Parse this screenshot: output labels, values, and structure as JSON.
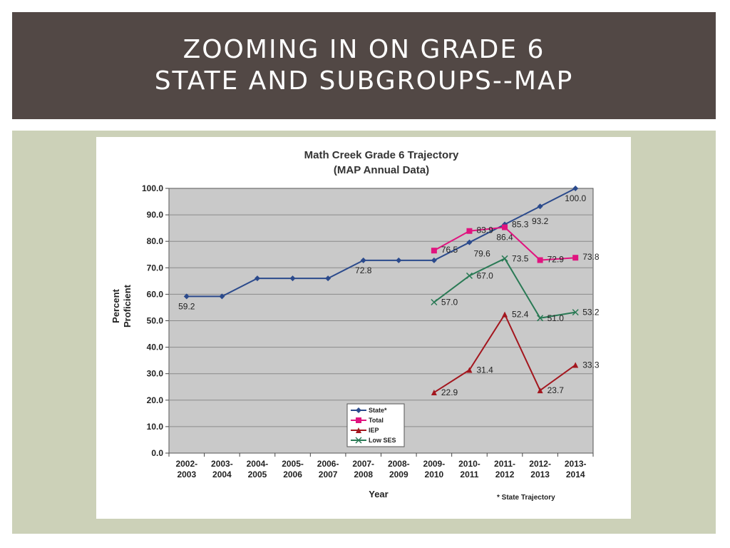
{
  "slide": {
    "title_line1": "ZOOMING IN ON GRADE 6",
    "title_line2": "STATE AND SUBGROUPS--MAP"
  },
  "colors": {
    "title_bar": "#524845",
    "content_bg": "#ccd1b8",
    "plot_bg": "#c9c9c9"
  },
  "chart_data": {
    "type": "line",
    "title": "Math Creek Grade 6 Trajectory",
    "subtitle": "(MAP Annual Data)",
    "xlabel": "Year",
    "ylabel_line1": "Percent",
    "ylabel_line2": "Proficient",
    "ylim": [
      0,
      100
    ],
    "ytick_labels": [
      "0.0",
      "10.0",
      "20.0",
      "30.0",
      "40.0",
      "50.0",
      "60.0",
      "70.0",
      "80.0",
      "90.0",
      "100.0"
    ],
    "categories": [
      [
        "2002-",
        "2003"
      ],
      [
        "2003-",
        "2004"
      ],
      [
        "2004-",
        "2005"
      ],
      [
        "2005-",
        "2006"
      ],
      [
        "2006-",
        "2007"
      ],
      [
        "2007-",
        "2008"
      ],
      [
        "2008-",
        "2009"
      ],
      [
        "2009-",
        "2010"
      ],
      [
        "2010-",
        "2011"
      ],
      [
        "2011-",
        "2012"
      ],
      [
        "2012-",
        "2013"
      ],
      [
        "2013-",
        "2014"
      ]
    ],
    "grid": true,
    "legend_position": "bottom-center",
    "footnote": "* State Trajectory",
    "series": [
      {
        "name": "State*",
        "color": "#2b4a8c",
        "marker": "diamond",
        "values": [
          59.2,
          59.2,
          66,
          66,
          66,
          72.8,
          72.8,
          72.8,
          79.6,
          86.4,
          93.2,
          100
        ],
        "labels": [
          "59.2",
          null,
          null,
          null,
          null,
          "72.8",
          null,
          null,
          "79.6",
          "86.4",
          "93.2",
          "100.0"
        ]
      },
      {
        "name": "Total",
        "color": "#e0147f",
        "marker": "square",
        "values": [
          null,
          null,
          null,
          null,
          null,
          null,
          null,
          76.5,
          83.9,
          85.3,
          72.9,
          73.8
        ],
        "labels": [
          null,
          null,
          null,
          null,
          null,
          null,
          null,
          "76.5",
          "83.9",
          "85.3",
          "72.9",
          "73.8"
        ]
      },
      {
        "name": "IEP",
        "color": "#a3161e",
        "marker": "triangle",
        "values": [
          null,
          null,
          null,
          null,
          null,
          null,
          null,
          22.9,
          31.4,
          52.4,
          23.7,
          33.3
        ],
        "labels": [
          null,
          null,
          null,
          null,
          null,
          null,
          null,
          "22.9",
          "31.4",
          "52.4",
          "23.7",
          "33.3"
        ]
      },
      {
        "name": "Low SES",
        "color": "#2a7a55",
        "marker": "x",
        "values": [
          null,
          null,
          null,
          null,
          null,
          null,
          null,
          57,
          67,
          73.5,
          51,
          53.2
        ],
        "labels": [
          null,
          null,
          null,
          null,
          null,
          null,
          null,
          "57.0",
          "67.0",
          "73.5",
          "51.0",
          "53.2"
        ]
      }
    ]
  }
}
